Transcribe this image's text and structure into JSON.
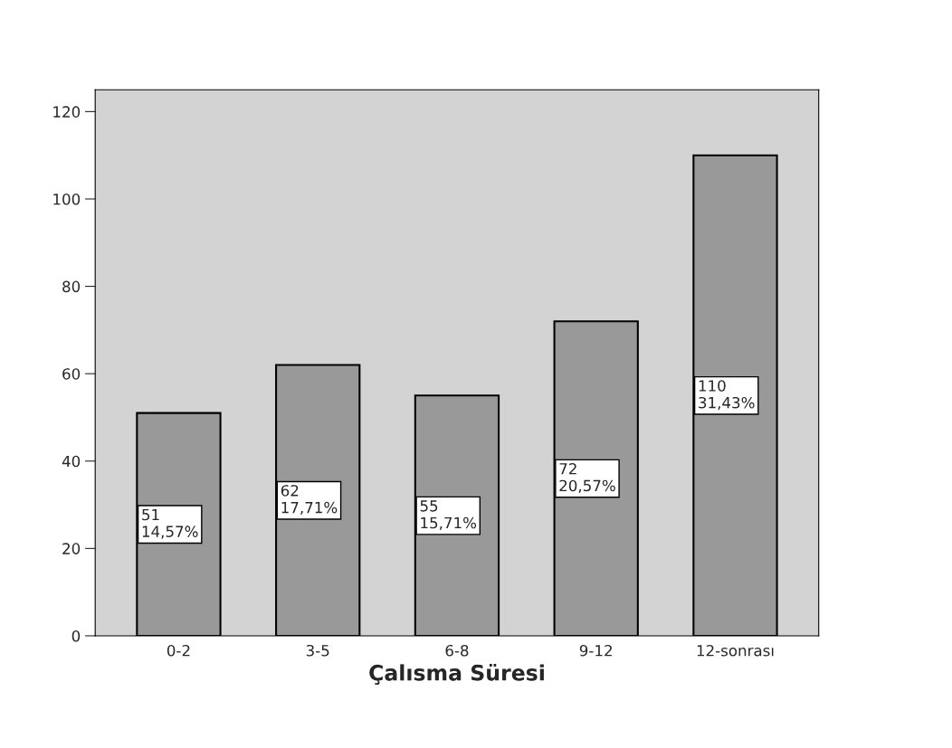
{
  "chart_data": {
    "type": "bar",
    "xlabel": "Çalısma Süresi",
    "categories": [
      "0-2",
      "3-5",
      "6-8",
      "9-12",
      "12-sonrası"
    ],
    "values": [
      51,
      62,
      55,
      72,
      110
    ],
    "color": "#999999",
    "value_labels": [
      "51\n14,57%",
      "62\n17,71%",
      "55\n15,71%",
      "72\n20,57%",
      "110\n31,43%"
    ],
    "ylim": [
      0,
      125
    ],
    "yticks": [
      0,
      20,
      40,
      60,
      80,
      100,
      120
    ],
    "grid": false,
    "legend": false
  }
}
